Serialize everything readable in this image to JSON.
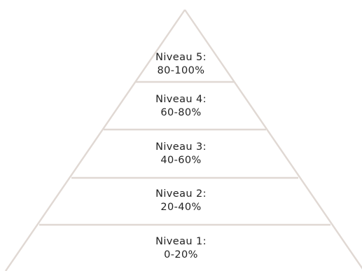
{
  "colors": {
    "outline": "#e0d8d3",
    "text": "#222222",
    "background": "#ffffff"
  },
  "levels": [
    {
      "name": "Niveau 5:",
      "range": "80-100%"
    },
    {
      "name": "Niveau 4:",
      "range": "60-80%"
    },
    {
      "name": "Niveau 3:",
      "range": "40-60%"
    },
    {
      "name": "Niveau 2:",
      "range": "20-40%"
    },
    {
      "name": "Niveau 1:",
      "range": "0-20%"
    }
  ]
}
